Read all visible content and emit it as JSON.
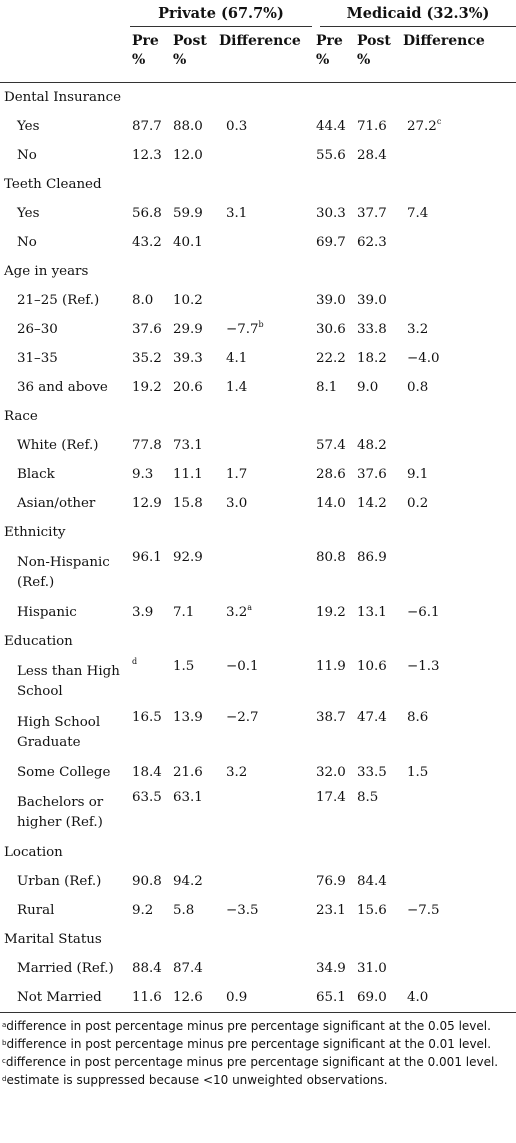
{
  "table": {
    "group_headers": [
      "Private (67.7%)",
      "Medicaid (32.3%)"
    ],
    "sub_headers": [
      {
        "line1": "Pre",
        "line2": "%"
      },
      {
        "line1": "Post",
        "line2": "%"
      },
      {
        "line1": "Difference",
        "line2": ""
      },
      {
        "line1": "Pre",
        "line2": "%"
      },
      {
        "line1": "Post",
        "line2": "%"
      },
      {
        "line1": "Difference",
        "line2": ""
      }
    ],
    "sections": [
      {
        "label": "Dental Insurance",
        "rows": [
          {
            "label": "Yes",
            "pre": "87.7",
            "post": "88.0",
            "diff": "0.3",
            "diff_sup": "",
            "mpre": "44.4",
            "mpost": "71.6",
            "mdiff": "27.2",
            "mdiff_sup": "c"
          },
          {
            "label": "No",
            "pre": "12.3",
            "post": "12.0",
            "diff": "",
            "diff_sup": "",
            "mpre": "55.6",
            "mpost": "28.4",
            "mdiff": "",
            "mdiff_sup": ""
          }
        ]
      },
      {
        "label": "Teeth Cleaned",
        "rows": [
          {
            "label": "Yes",
            "pre": "56.8",
            "post": "59.9",
            "diff": "3.1",
            "diff_sup": "",
            "mpre": "30.3",
            "mpost": "37.7",
            "mdiff": "7.4",
            "mdiff_sup": ""
          },
          {
            "label": "No",
            "pre": "43.2",
            "post": "40.1",
            "diff": "",
            "diff_sup": "",
            "mpre": "69.7",
            "mpost": "62.3",
            "mdiff": "",
            "mdiff_sup": ""
          }
        ]
      },
      {
        "label": "Age in years",
        "rows": [
          {
            "label": "21–25 (Ref.)",
            "pre": "8.0",
            "post": "10.2",
            "diff": "",
            "diff_sup": "",
            "mpre": "39.0",
            "mpost": "39.0",
            "mdiff": "",
            "mdiff_sup": ""
          },
          {
            "label": "26–30",
            "pre": "37.6",
            "post": "29.9",
            "diff": "−7.7",
            "diff_sup": "b",
            "mpre": "30.6",
            "mpost": "33.8",
            "mdiff": "3.2",
            "mdiff_sup": ""
          },
          {
            "label": "31–35",
            "pre": "35.2",
            "post": "39.3",
            "diff": "4.1",
            "diff_sup": "",
            "mpre": "22.2",
            "mpost": "18.2",
            "mdiff": "−4.0",
            "mdiff_sup": ""
          },
          {
            "label": "36 and above",
            "pre": "19.2",
            "post": "20.6",
            "diff": "1.4",
            "diff_sup": "",
            "mpre": "8.1",
            "mpost": "9.0",
            "mdiff": "0.8",
            "mdiff_sup": ""
          }
        ]
      },
      {
        "label": "Race",
        "rows": [
          {
            "label": "White (Ref.)",
            "pre": "77.8",
            "post": "73.1",
            "diff": "",
            "diff_sup": "",
            "mpre": "57.4",
            "mpost": "48.2",
            "mdiff": "",
            "mdiff_sup": ""
          },
          {
            "label": "Black",
            "pre": "9.3",
            "post": "11.1",
            "diff": "1.7",
            "diff_sup": "",
            "mpre": "28.6",
            "mpost": "37.6",
            "mdiff": "9.1",
            "mdiff_sup": ""
          },
          {
            "label": "Asian/other",
            "pre": "12.9",
            "post": "15.8",
            "diff": "3.0",
            "diff_sup": "",
            "mpre": "14.0",
            "mpost": "14.2",
            "mdiff": "0.2",
            "mdiff_sup": ""
          }
        ]
      },
      {
        "label": "Ethnicity",
        "rows": [
          {
            "label": "Non-Hispanic (Ref.)",
            "tall": true,
            "pre": "96.1",
            "post": "92.9",
            "diff": "",
            "diff_sup": "",
            "mpre": "80.8",
            "mpost": "86.9",
            "mdiff": "",
            "mdiff_sup": ""
          },
          {
            "label": "Hispanic",
            "pre": "3.9",
            "post": "7.1",
            "diff": "3.2",
            "diff_sup": "a",
            "mpre": "19.2",
            "mpost": "13.1",
            "mdiff": "−6.1",
            "mdiff_sup": ""
          }
        ]
      },
      {
        "label": "Education",
        "rows": [
          {
            "label": "Less than High School",
            "tall": true,
            "pre": "",
            "pre_sup": "d",
            "post": "1.5",
            "diff": "−0.1",
            "diff_sup": "",
            "mpre": "11.9",
            "mpost": "10.6",
            "mdiff": "−1.3",
            "mdiff_sup": ""
          },
          {
            "label": "High School Graduate",
            "tall": true,
            "pre": "16.5",
            "post": "13.9",
            "diff": "−2.7",
            "diff_sup": "",
            "mpre": "38.7",
            "mpost": "47.4",
            "mdiff": "8.6",
            "mdiff_sup": ""
          },
          {
            "label": "Some College",
            "pre": "18.4",
            "post": "21.6",
            "diff": "3.2",
            "diff_sup": "",
            "mpre": "32.0",
            "mpost": "33.5",
            "mdiff": "1.5",
            "mdiff_sup": ""
          },
          {
            "label": "Bachelors or higher (Ref.)",
            "tall": true,
            "pre": "63.5",
            "post": "63.1",
            "diff": "",
            "diff_sup": "",
            "mpre": "17.4",
            "mpost": "8.5",
            "mdiff": "",
            "mdiff_sup": ""
          }
        ]
      },
      {
        "label": "Location",
        "rows": [
          {
            "label": "Urban (Ref.)",
            "pre": "90.8",
            "post": "94.2",
            "diff": "",
            "diff_sup": "",
            "mpre": "76.9",
            "mpost": "84.4",
            "mdiff": "",
            "mdiff_sup": ""
          },
          {
            "label": "Rural",
            "pre": "9.2",
            "post": "5.8",
            "diff": "−3.5",
            "diff_sup": "",
            "mpre": "23.1",
            "mpost": "15.6",
            "mdiff": "−7.5",
            "mdiff_sup": ""
          }
        ]
      },
      {
        "label": "Marital Status",
        "rows": [
          {
            "label": "Married (Ref.)",
            "pre": "88.4",
            "post": "87.4",
            "diff": "",
            "diff_sup": "",
            "mpre": "34.9",
            "mpost": "31.0",
            "mdiff": "",
            "mdiff_sup": ""
          },
          {
            "label": "Not Married",
            "pre": "11.6",
            "post": "12.6",
            "diff": "0.9",
            "diff_sup": "",
            "mpre": "65.1",
            "mpost": "69.0",
            "mdiff": "4.0",
            "mdiff_sup": ""
          }
        ]
      }
    ]
  },
  "footnotes": [
    {
      "mark": "a",
      "text": "difference in post percentage minus pre percentage significant at the 0.05 level."
    },
    {
      "mark": "b",
      "text": "difference in post percentage minus pre percentage significant at the 0.01 level."
    },
    {
      "mark": "c",
      "text": "difference in post percentage minus pre percentage significant at the 0.001 level."
    },
    {
      "mark": "d",
      "text": "estimate is suppressed because <10 unweighted observations."
    }
  ]
}
